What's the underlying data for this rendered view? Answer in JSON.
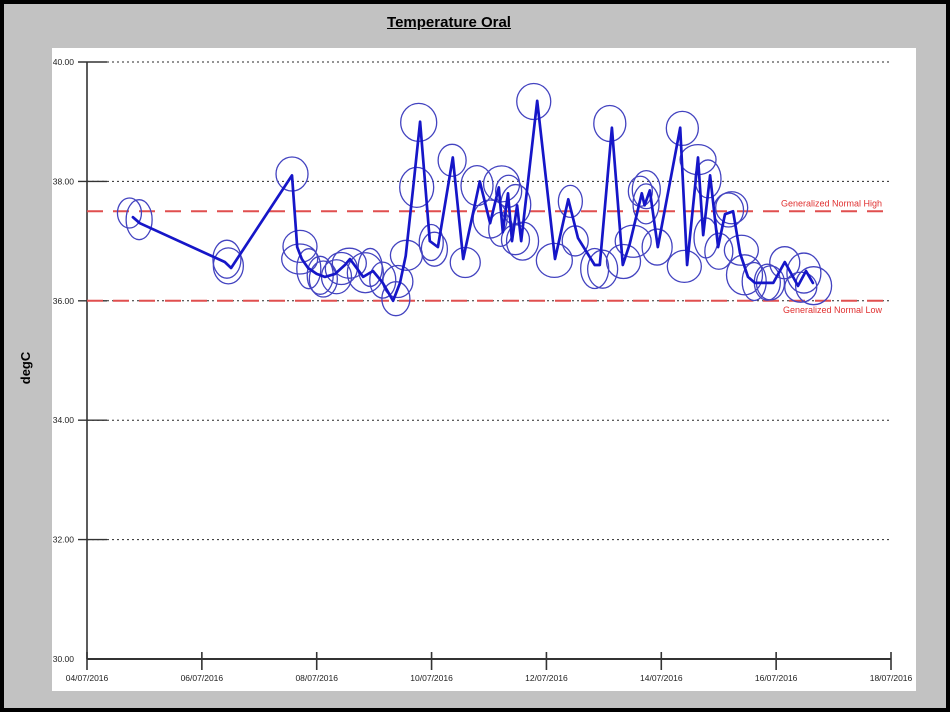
{
  "title": "Temperature Oral",
  "y_axis": {
    "label": "degC",
    "tick_labels": [
      "40.00",
      "38.00",
      "36.00",
      "34.00",
      "32.00",
      "30.00"
    ],
    "tick_values": [
      40,
      38,
      36,
      34,
      32,
      30
    ],
    "min": 30,
    "max": 40
  },
  "x_axis": {
    "tick_labels": [
      "04/07/2016",
      "06/07/2016",
      "08/07/2016",
      "10/07/2016",
      "12/07/2016",
      "14/07/2016",
      "16/07/2016",
      "18/07/2016"
    ],
    "tick_day_offsets": [
      0,
      2,
      4,
      6,
      8,
      10,
      12,
      14
    ]
  },
  "reference_lines": [
    {
      "label": "Generalized Normal High",
      "value": 37.5
    },
    {
      "label": "Generalized Normal Low",
      "value": 36.0
    }
  ],
  "colors": {
    "background_gray": "#c2c2c2",
    "panel_white": "#ffffff",
    "axis": "#333333",
    "grid": "#2a2a2a",
    "series_blue": "#1616c8",
    "marker_blue": "#4343c0",
    "reference_red": "#e04f4f",
    "reference_label_red": "#e03030",
    "text": "#222222"
  },
  "chart_data": {
    "type": "line",
    "title": "Temperature Oral",
    "xlabel": "",
    "ylabel": "degC",
    "ylim": [
      30,
      40
    ],
    "xlim_dates": [
      "04/07/2016",
      "18/07/2016"
    ],
    "grid": "horizontal dotted at 40,38,36,34,32",
    "legend": "none",
    "marker_style": "each point circled with blue ellipse",
    "reference_high": 37.5,
    "reference_low": 36.0,
    "x_unit": "days after 04/07/2016",
    "x": [
      0.8,
      0.92,
      2.4,
      2.51,
      3.57,
      3.66,
      3.74,
      3.85,
      4.0,
      4.14,
      4.32,
      4.49,
      4.58,
      4.81,
      4.98,
      5.15,
      5.33,
      5.45,
      5.55,
      5.68,
      5.8,
      5.97,
      6.11,
      6.37,
      6.55,
      6.84,
      7.02,
      7.17,
      7.24,
      7.33,
      7.4,
      7.49,
      7.56,
      7.84,
      8.15,
      8.38,
      8.55,
      8.84,
      8.93,
      9.14,
      9.33,
      9.45,
      9.66,
      9.71,
      9.8,
      9.94,
      10.33,
      10.45,
      10.64,
      10.73,
      10.85,
      10.99,
      11.11,
      11.25,
      11.37,
      11.51,
      11.63,
      11.81,
      11.95,
      12.15,
      12.38,
      12.52,
      12.64
    ],
    "values": [
      37.4,
      37.3,
      36.65,
      36.55,
      38.1,
      36.9,
      36.7,
      36.55,
      36.45,
      36.4,
      36.45,
      36.6,
      36.7,
      36.4,
      36.5,
      36.3,
      36.0,
      36.3,
      36.75,
      37.9,
      39.0,
      37.0,
      36.9,
      38.4,
      36.7,
      38.0,
      37.3,
      37.9,
      37.15,
      37.8,
      37.0,
      37.6,
      37.0,
      39.35,
      36.7,
      37.7,
      37.05,
      36.6,
      36.6,
      38.9,
      36.6,
      36.95,
      37.8,
      37.6,
      37.85,
      36.9,
      38.9,
      36.6,
      38.4,
      37.1,
      38.1,
      36.9,
      37.45,
      37.5,
      36.8,
      36.4,
      36.3,
      36.3,
      36.3,
      36.65,
      36.25,
      36.5,
      36.3
    ]
  }
}
